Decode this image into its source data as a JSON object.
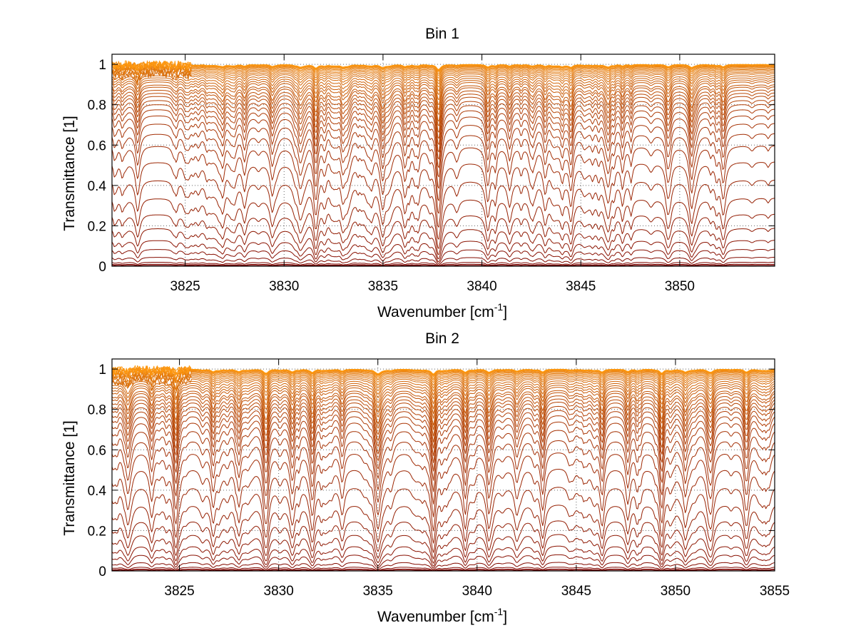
{
  "chart_data": [
    {
      "type": "line",
      "title": "Bin 1",
      "xlabel": "Wavenumber [cm",
      "xlabel_sup": "-1",
      "xlabel_close": "]",
      "ylabel": "Transmittance [1]",
      "xlim": [
        3821.3,
        3854.8
      ],
      "ylim": [
        0,
        1.05
      ],
      "x_ticks": [
        3825,
        3830,
        3835,
        3840,
        3845,
        3850
      ],
      "x_tick_labels": [
        "3825",
        "3830",
        "3835",
        "3840",
        "3845",
        "3850"
      ],
      "y_ticks": [
        0,
        0.2,
        0.4,
        0.6,
        0.8,
        1
      ],
      "y_tick_labels": [
        "0",
        "0.2",
        "0.4",
        "0.6",
        "0.8",
        "1"
      ],
      "grid": true,
      "n_series": 40,
      "series_baselines": [
        0.005,
        0.01,
        0.02,
        0.045,
        0.085,
        0.13,
        0.19,
        0.26,
        0.34,
        0.43,
        0.52,
        0.6,
        0.66,
        0.71,
        0.75,
        0.78,
        0.805,
        0.825,
        0.845,
        0.86,
        0.875,
        0.89,
        0.9,
        0.915,
        0.925,
        0.935,
        0.945,
        0.955,
        0.962,
        0.969,
        0.975,
        0.98,
        0.985,
        0.989,
        0.992,
        0.995,
        0.997,
        0.998,
        0.999,
        1.0
      ],
      "absorption_lines": [
        {
          "x": 3822.6,
          "depth": 0.35
        },
        {
          "x": 3826.9,
          "depth": 0.3
        },
        {
          "x": 3828.0,
          "depth": 0.28
        },
        {
          "x": 3829.4,
          "depth": 0.32
        },
        {
          "x": 3830.8,
          "depth": 0.3
        },
        {
          "x": 3831.6,
          "depth": 0.6
        },
        {
          "x": 3833.0,
          "depth": 0.25
        },
        {
          "x": 3835.0,
          "depth": 0.38
        },
        {
          "x": 3836.1,
          "depth": 0.28
        },
        {
          "x": 3837.8,
          "depth": 0.85
        },
        {
          "x": 3840.3,
          "depth": 0.42
        },
        {
          "x": 3841.4,
          "depth": 0.28
        },
        {
          "x": 3843.2,
          "depth": 0.3
        },
        {
          "x": 3844.5,
          "depth": 0.25
        },
        {
          "x": 3846.4,
          "depth": 0.33
        },
        {
          "x": 3849.4,
          "depth": 0.36
        },
        {
          "x": 3850.6,
          "depth": 0.3
        },
        {
          "x": 3852.2,
          "depth": 0.4
        }
      ],
      "color_range": [
        "#7a0000",
        "#ff9a10"
      ]
    },
    {
      "type": "line",
      "title": "Bin 2",
      "xlabel": "Wavenumber [cm",
      "xlabel_sup": "-1",
      "xlabel_close": "]",
      "ylabel": "Transmittance [1]",
      "xlim": [
        3821.6,
        3855
      ],
      "ylim": [
        0,
        1.05
      ],
      "x_ticks": [
        3825,
        3830,
        3835,
        3840,
        3845,
        3850,
        3855
      ],
      "x_tick_labels": [
        "3825",
        "3830",
        "3835",
        "3840",
        "3845",
        "3850",
        "3855"
      ],
      "y_ticks": [
        0,
        0.2,
        0.4,
        0.6,
        0.8,
        1
      ],
      "y_tick_labels": [
        "0",
        "0.2",
        "0.4",
        "0.6",
        "0.8",
        "1"
      ],
      "grid": true,
      "n_series": 40,
      "series_baselines": [
        0.005,
        0.01,
        0.02,
        0.045,
        0.085,
        0.13,
        0.19,
        0.26,
        0.34,
        0.43,
        0.52,
        0.6,
        0.66,
        0.71,
        0.75,
        0.78,
        0.805,
        0.825,
        0.845,
        0.86,
        0.875,
        0.89,
        0.9,
        0.915,
        0.925,
        0.935,
        0.945,
        0.955,
        0.962,
        0.969,
        0.975,
        0.98,
        0.985,
        0.989,
        0.992,
        0.995,
        0.997,
        0.998,
        0.999,
        1.0
      ],
      "absorption_lines": [
        {
          "x": 3822.4,
          "depth": 0.4
        },
        {
          "x": 3823.6,
          "depth": 0.35
        },
        {
          "x": 3824.8,
          "depth": 0.5
        },
        {
          "x": 3826.7,
          "depth": 0.42
        },
        {
          "x": 3828.0,
          "depth": 0.4
        },
        {
          "x": 3829.4,
          "depth": 0.45
        },
        {
          "x": 3830.7,
          "depth": 0.35
        },
        {
          "x": 3831.7,
          "depth": 0.55
        },
        {
          "x": 3833.2,
          "depth": 0.32
        },
        {
          "x": 3835.0,
          "depth": 0.5
        },
        {
          "x": 3837.8,
          "depth": 0.82
        },
        {
          "x": 3839.4,
          "depth": 0.38
        },
        {
          "x": 3840.6,
          "depth": 0.45
        },
        {
          "x": 3842.0,
          "depth": 0.3
        },
        {
          "x": 3843.3,
          "depth": 0.38
        },
        {
          "x": 3846.3,
          "depth": 0.48
        },
        {
          "x": 3847.6,
          "depth": 0.3
        },
        {
          "x": 3849.3,
          "depth": 0.58
        },
        {
          "x": 3850.5,
          "depth": 0.45
        },
        {
          "x": 3851.8,
          "depth": 0.35
        },
        {
          "x": 3853.6,
          "depth": 0.42
        }
      ],
      "color_range": [
        "#7a0000",
        "#ff9a10"
      ]
    }
  ]
}
